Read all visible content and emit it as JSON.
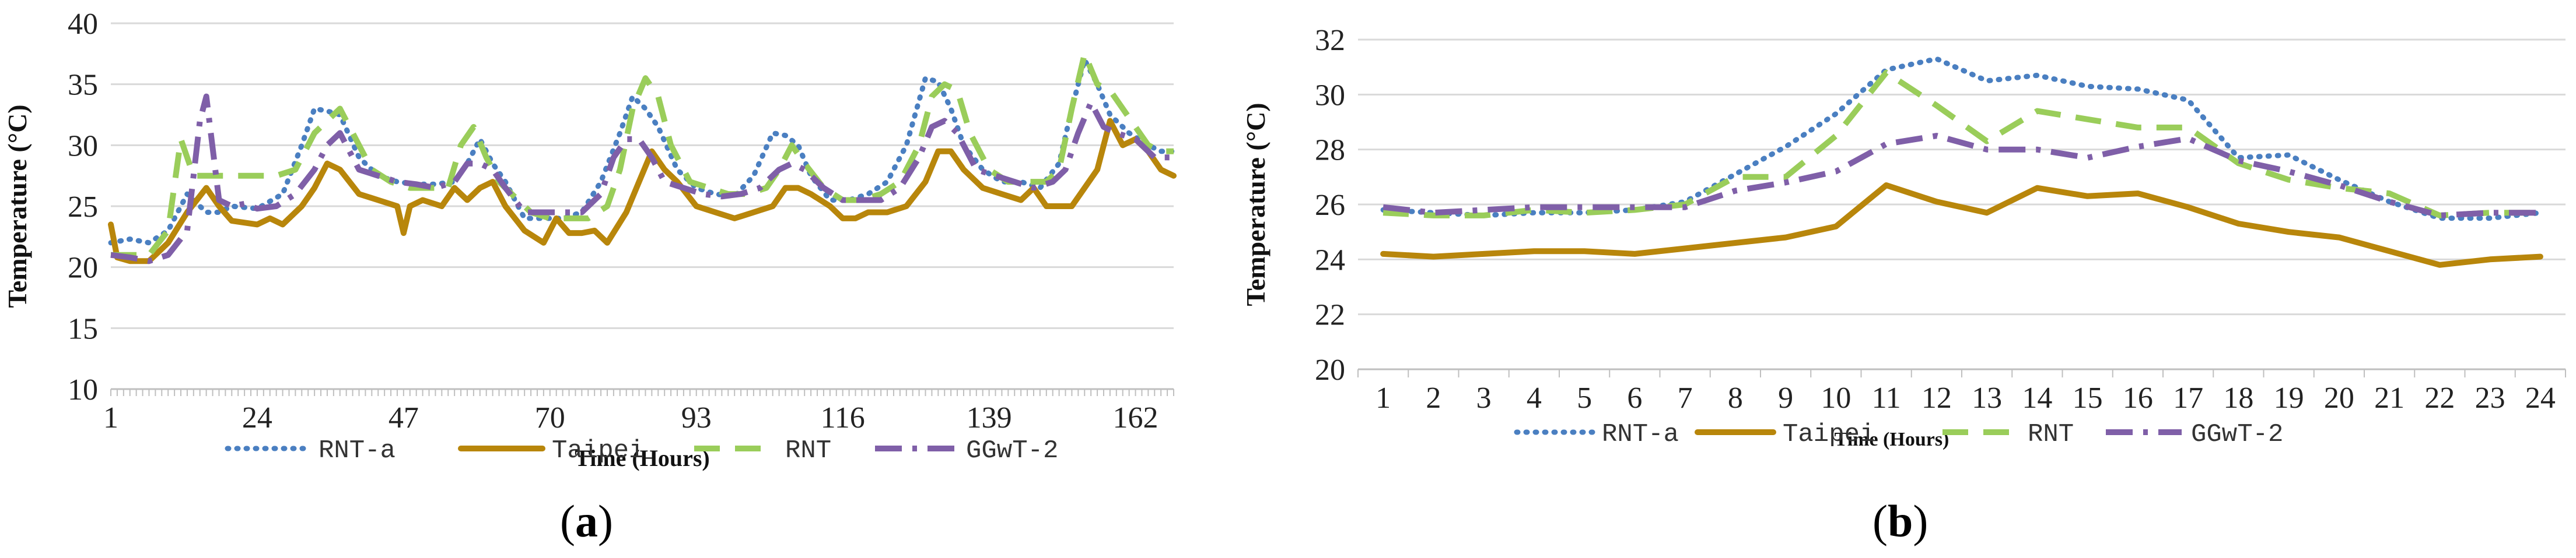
{
  "colors": {
    "rnt_a": "#4a7fc1",
    "taipei": "#b8860b",
    "rnt": "#9acd5a",
    "ggwt2": "#7f5fa8",
    "grid": "#d9d9d9",
    "axis": "#bfbfbf"
  },
  "captions": {
    "a_open": "(",
    "a_letter": "a",
    "a_close": ")",
    "b_open": "(",
    "b_letter": "b",
    "b_close": ")"
  },
  "chart_data": [
    {
      "type": "line",
      "panel": "a",
      "title": "",
      "xlabel": "Time (Hours)",
      "ylabel": "Temperature (°C)",
      "ylim": [
        10,
        40
      ],
      "xlim": [
        1,
        168
      ],
      "yticks": [
        10,
        15,
        20,
        25,
        30,
        35,
        40
      ],
      "xticks": [
        1,
        24,
        47,
        70,
        93,
        116,
        139,
        162
      ],
      "grid": "horizontal",
      "legend_position": "bottom",
      "series": [
        {
          "name": "RNT-a",
          "style": "dotted",
          "color_key": "rnt_a",
          "x": [
            1,
            4,
            7,
            10,
            13,
            16,
            18,
            20,
            24,
            28,
            31,
            33,
            35,
            37,
            40,
            43,
            46,
            49,
            52,
            55,
            57,
            59,
            61,
            63,
            66,
            69,
            72,
            75,
            78,
            81,
            83,
            85,
            87,
            90,
            93,
            96,
            99,
            102,
            105,
            107,
            109,
            111,
            114,
            117,
            120,
            123,
            126,
            129,
            131,
            133,
            135,
            138,
            141,
            144,
            147,
            150,
            152,
            154,
            156,
            158,
            161,
            164,
            166,
            168
          ],
          "y": [
            22,
            22.3,
            22,
            23,
            26,
            24.5,
            24.5,
            25,
            24.8,
            26,
            30,
            33,
            32.8,
            32.5,
            29,
            27.5,
            27,
            26.8,
            26.8,
            27,
            28.5,
            30.5,
            28.5,
            27,
            24,
            24,
            24,
            24.5,
            27,
            31,
            34,
            33,
            31.5,
            28,
            26.5,
            26,
            25.8,
            27.5,
            31,
            30.8,
            30,
            27.5,
            25.5,
            25.5,
            26,
            27,
            30,
            35.5,
            35.2,
            33,
            30,
            28,
            27,
            27,
            26.5,
            28.5,
            33,
            37,
            35,
            32.5,
            31,
            30,
            29.5,
            29.5
          ]
        },
        {
          "name": "Taipei",
          "style": "solid",
          "color_key": "taipei",
          "x": [
            1,
            2,
            4,
            7,
            10,
            13,
            16,
            18,
            20,
            24,
            26,
            28,
            31,
            33,
            35,
            37,
            40,
            43,
            46,
            47,
            48,
            50,
            53,
            55,
            57,
            59,
            61,
            63,
            66,
            69,
            71,
            73,
            75,
            77,
            79,
            82,
            84,
            86,
            88,
            90,
            93,
            96,
            99,
            102,
            105,
            107,
            109,
            111,
            114,
            116,
            118,
            120,
            123,
            126,
            129,
            131,
            133,
            135,
            138,
            141,
            144,
            146,
            148,
            150,
            152,
            154,
            156,
            158,
            160,
            162,
            164,
            166,
            168
          ],
          "y": [
            23.5,
            20.8,
            20.5,
            20.5,
            22,
            24.5,
            26.5,
            25,
            23.8,
            23.5,
            24,
            23.5,
            25,
            26.5,
            28.5,
            28,
            26,
            25.5,
            25,
            22.8,
            25,
            25.5,
            25,
            26.5,
            25.5,
            26.5,
            27,
            25,
            23,
            22,
            24,
            22.8,
            22.8,
            23,
            22,
            24.5,
            27,
            29.5,
            28,
            27,
            25,
            24.5,
            24,
            24.5,
            25,
            26.5,
            26.5,
            26,
            25,
            24,
            24,
            24.5,
            24.5,
            25,
            27,
            29.5,
            29.5,
            28,
            26.5,
            26,
            25.5,
            26.5,
            25,
            25,
            25,
            26.5,
            28,
            32,
            30,
            30.5,
            29.5,
            28,
            27.5
          ]
        },
        {
          "name": "RNT",
          "style": "dashed",
          "color_key": "rnt",
          "x": [
            1,
            4,
            7,
            10,
            12,
            14,
            16,
            18,
            20,
            24,
            27,
            30,
            33,
            35,
            37,
            39,
            42,
            45,
            48,
            51,
            54,
            56,
            58,
            60,
            62,
            64,
            67,
            70,
            73,
            76,
            79,
            81,
            83,
            85,
            87,
            89,
            92,
            95,
            98,
            101,
            104,
            106,
            108,
            110,
            113,
            116,
            119,
            122,
            125,
            128,
            130,
            132,
            134,
            136,
            139,
            142,
            145,
            148,
            150,
            152,
            154,
            156,
            158,
            160,
            162,
            164,
            166,
            168
          ],
          "y": [
            21,
            21,
            21,
            23,
            30.5,
            27.5,
            27.5,
            27.5,
            27.5,
            27.5,
            27.5,
            28,
            31,
            32,
            33,
            31,
            28,
            27,
            26.5,
            26.5,
            26.5,
            30,
            31.5,
            29,
            27,
            26,
            24.5,
            24,
            24,
            24,
            25,
            28,
            33,
            35.5,
            34,
            30,
            27,
            26.5,
            26,
            26,
            26.5,
            28,
            30,
            28.5,
            26.5,
            25.5,
            25.5,
            26,
            27,
            30,
            34,
            35,
            34.5,
            31,
            28,
            27,
            27,
            27,
            28,
            33,
            37.5,
            35,
            34.5,
            33,
            31.5,
            30,
            29.5,
            29.5
          ]
        },
        {
          "name": "GGwT-2",
          "style": "dashdot",
          "color_key": "ggwt2",
          "x": [
            1,
            4,
            7,
            10,
            13,
            15,
            16,
            18,
            20,
            22,
            24,
            27,
            30,
            33,
            35,
            37,
            40,
            43,
            46,
            49,
            52,
            55,
            57,
            59,
            61,
            63,
            66,
            69,
            72,
            75,
            78,
            80,
            82,
            84,
            86,
            88,
            91,
            94,
            97,
            100,
            103,
            106,
            108,
            110,
            113,
            116,
            119,
            122,
            125,
            128,
            130,
            132,
            134,
            137,
            140,
            143,
            146,
            149,
            151,
            153,
            155,
            157,
            159,
            162,
            165,
            168
          ],
          "y": [
            21,
            20.8,
            20.5,
            21,
            23,
            32,
            34,
            25.5,
            25,
            25.2,
            24.8,
            25,
            26,
            28,
            30,
            31,
            28,
            27.5,
            27,
            26.8,
            26.5,
            27,
            28.5,
            28.5,
            28,
            26.5,
            24.5,
            24.5,
            24.5,
            24.5,
            26,
            29,
            30.5,
            30.5,
            29,
            27,
            26.5,
            26,
            25.8,
            26,
            26.5,
            28,
            28.5,
            28,
            26.5,
            25.5,
            25.5,
            25.5,
            26.5,
            29,
            31.5,
            32,
            31,
            28,
            27.5,
            27,
            26.5,
            27,
            28,
            31,
            33.5,
            31.5,
            31,
            30.5,
            29,
            29
          ]
        }
      ]
    },
    {
      "type": "line",
      "panel": "b",
      "title": "",
      "xlabel": "Time (Hours)",
      "ylabel": "Temperature (°C)",
      "ylim": [
        20,
        32
      ],
      "yticks": [
        20,
        22,
        24,
        26,
        28,
        30,
        32
      ],
      "categories": [
        "1",
        "2",
        "3",
        "4",
        "5",
        "6",
        "7",
        "8",
        "9",
        "10",
        "11",
        "12",
        "13",
        "14",
        "15",
        "16",
        "17",
        "18",
        "19",
        "20",
        "21",
        "22",
        "23",
        "24"
      ],
      "grid": "horizontal",
      "legend_position": "bottom",
      "series": [
        {
          "name": "RNT-a",
          "style": "dotted",
          "color_key": "rnt_a",
          "values": [
            25.8,
            25.7,
            25.6,
            25.7,
            25.7,
            25.8,
            26.1,
            27.1,
            28.1,
            29.3,
            30.9,
            31.3,
            30.5,
            30.7,
            30.3,
            30.2,
            29.8,
            27.7,
            27.8,
            26.9,
            26.1,
            25.5,
            25.5,
            25.7
          ]
        },
        {
          "name": "Taipei",
          "style": "solid",
          "color_key": "taipei",
          "values": [
            24.2,
            24.1,
            24.2,
            24.3,
            24.3,
            24.2,
            24.4,
            24.6,
            24.8,
            25.2,
            26.7,
            26.1,
            25.7,
            26.6,
            26.3,
            26.4,
            25.9,
            25.3,
            25.0,
            24.8,
            24.3,
            23.8,
            24.0,
            24.1
          ]
        },
        {
          "name": "RNT",
          "style": "dashed",
          "color_key": "rnt",
          "values": [
            25.7,
            25.6,
            25.6,
            25.8,
            25.7,
            25.8,
            26.0,
            27.0,
            27.0,
            28.5,
            30.8,
            29.6,
            28.3,
            29.4,
            29.1,
            28.8,
            28.8,
            27.5,
            26.9,
            26.6,
            26.4,
            25.6,
            25.7,
            25.7
          ]
        },
        {
          "name": "GGwT-2",
          "style": "dashdot",
          "color_key": "ggwt2",
          "values": [
            25.9,
            25.7,
            25.8,
            25.9,
            25.9,
            25.9,
            25.9,
            26.5,
            26.8,
            27.2,
            28.2,
            28.5,
            28.0,
            28.0,
            27.7,
            28.1,
            28.4,
            27.6,
            27.2,
            26.7,
            26.1,
            25.6,
            25.7,
            25.7
          ]
        }
      ]
    }
  ]
}
